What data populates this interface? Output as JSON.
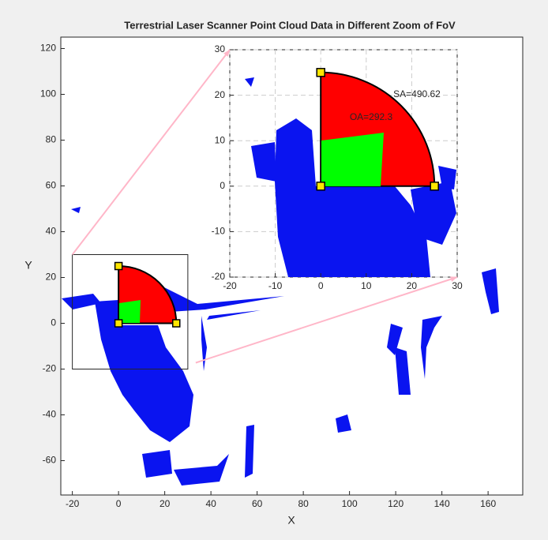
{
  "chart_data": [
    {
      "type": "scatter",
      "title": "Terrestrial Laser Scanner Point Cloud Data in Different Zoom of FoV",
      "xlabel": "X",
      "ylabel": "Y",
      "xlim": [
        -25,
        175
      ],
      "ylim": [
        -75,
        125
      ],
      "xticks": [
        -20,
        0,
        20,
        40,
        60,
        80,
        100,
        120,
        140,
        160
      ],
      "yticks": [
        -60,
        -40,
        -20,
        0,
        20,
        40,
        60,
        80,
        100,
        120
      ],
      "zoom_box": {
        "xlim": [
          -20,
          30
        ],
        "ylim": [
          -20,
          30
        ]
      },
      "fov": {
        "radius": 25,
        "start_angle": 0,
        "end_angle": 90
      },
      "grid": false
    },
    {
      "type": "scatter",
      "xlim": [
        -20,
        30
      ],
      "ylim": [
        -20,
        30
      ],
      "xticks": [
        -20,
        -10,
        0,
        10,
        20,
        30
      ],
      "yticks": [
        -20,
        -10,
        0,
        10,
        20,
        30
      ],
      "fov": {
        "radius": 25,
        "start_angle": 0,
        "end_angle": 90
      },
      "annotations": [
        "SA=490.62",
        "OA=292.3"
      ],
      "grid": true
    }
  ]
}
